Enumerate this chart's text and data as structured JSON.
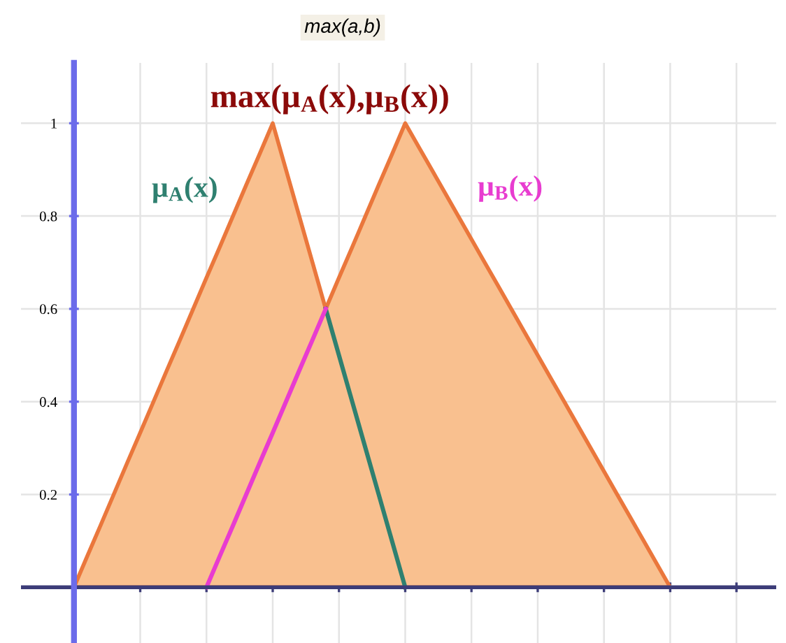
{
  "chart_data": {
    "type": "area",
    "title": "max(a,b)",
    "categories": [
      null,
      null,
      null,
      null,
      null,
      null,
      null,
      null,
      null,
      null,
      null,
      null,
      null,
      null,
      null,
      null,
      null,
      null,
      null,
      null,
      null,
      null,
      null,
      null,
      null,
      null,
      null,
      null,
      null,
      null,
      null,
      null,
      null,
      null,
      null,
      null,
      null,
      null,
      null,
      null,
      null,
      null,
      null,
      null,
      null,
      null,
      null,
      null,
      null,
      null,
      null
    ],
    "series": [
      {
        "name": "max(μ$_{A}$(x),μ$_{B}$(x))",
        "color": "#f9c08f",
        "values": [
          0,
          0.067,
          0.133,
          0.2,
          0.267,
          0.333,
          0.4,
          0.467,
          0.533,
          0.6,
          0.667,
          0.733,
          0.8,
          0.867,
          0.933,
          1,
          0.9,
          0.8,
          0.7,
          0.6,
          0.667,
          0.733,
          0.8,
          0.867,
          0.933,
          1,
          0.95,
          0.9,
          0.85,
          0.8,
          0.75,
          0.7,
          0.65,
          0.6,
          0.55,
          0.5,
          0.45,
          0.4,
          0.35,
          0.3,
          0.25,
          0.2,
          0.15,
          0.1,
          0.05,
          0,
          null,
          null,
          null,
          null,
          null
        ]
      },
      {
        "name": "μ$_{A}$(x)",
        "type": "line",
        "color": "#2f8070",
        "values": [
          null,
          null,
          null,
          null,
          null,
          null,
          null,
          null,
          null,
          null,
          null,
          null,
          null,
          null,
          null,
          null,
          null,
          null,
          null,
          0.6,
          0.5,
          0.4,
          0.3,
          0.2,
          0.1,
          0,
          null,
          null,
          null,
          null,
          null,
          null,
          null,
          null,
          null,
          null,
          null,
          null,
          null,
          null,
          null,
          null,
          null,
          null,
          null,
          null,
          null,
          null,
          null,
          null,
          null
        ]
      },
      {
        "name": "μ$_{B}$(x)",
        "type": "line",
        "color": "#e83cd0",
        "values": [
          null,
          null,
          null,
          null,
          null,
          null,
          null,
          null,
          null,
          null,
          0,
          0.067,
          0.133,
          0.2,
          0.267,
          0.333,
          0.4,
          0.467,
          0.533,
          0.6,
          null,
          null,
          null,
          null,
          null,
          null,
          null,
          null,
          null,
          null,
          null,
          null,
          null,
          null,
          null,
          null,
          null,
          null,
          null,
          null,
          null,
          null,
          null,
          null,
          null,
          null,
          null,
          null,
          null,
          null,
          null
        ]
      }
    ],
    "ylim": [
      -0.12,
      1.13
    ],
    "yticks": [
      0.2,
      0.4,
      0.6,
      0.8,
      1
    ],
    "ref_lines": [
      {
        "axis": "y",
        "value": 0,
        "color": "#3c3c78"
      }
    ],
    "grid": true,
    "tick_labels": "y",
    "line_style": "solid"
  }
}
